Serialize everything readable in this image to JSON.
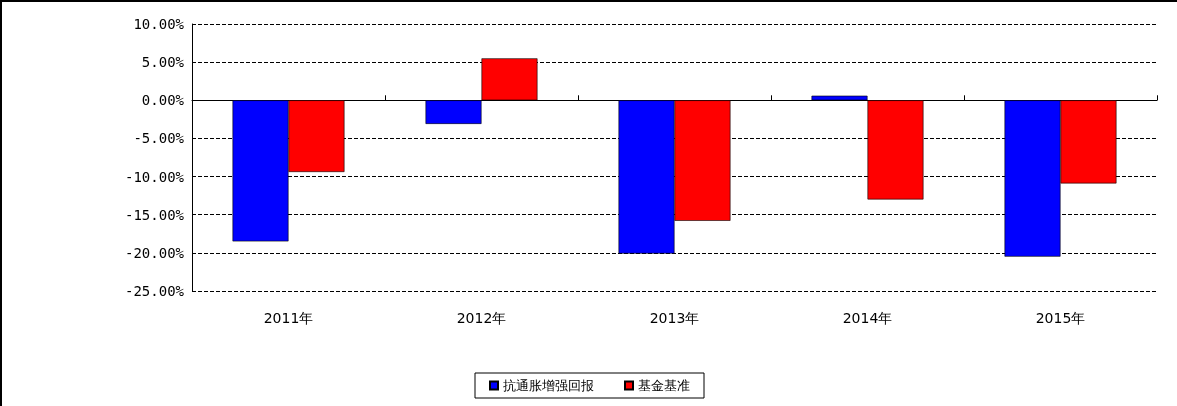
{
  "chart_data": {
    "type": "bar",
    "categories": [
      "2011年",
      "2012年",
      "2013年",
      "2014年",
      "2015年"
    ],
    "series": [
      {
        "name": "抗通胀增强回报",
        "color": "#0000ff",
        "values": [
          -18.5,
          -3.1,
          -20.1,
          0.6,
          -20.5
        ]
      },
      {
        "name": "基金基准",
        "color": "#ff0000",
        "values": [
          -9.4,
          5.5,
          -15.8,
          -13.0,
          -10.9
        ]
      }
    ],
    "ylim": [
      -25,
      10
    ],
    "yticks": [
      {
        "value": -25,
        "label": "-25.00%"
      },
      {
        "value": -20,
        "label": "-20.00%"
      },
      {
        "value": -15,
        "label": "-15.00%"
      },
      {
        "value": -10,
        "label": "-10.00%"
      },
      {
        "value": -5,
        "label": "-5.00%"
      },
      {
        "value": 0,
        "label": "0.00%"
      },
      {
        "value": 5,
        "label": "5.00%"
      },
      {
        "value": 10,
        "label": "10.00%"
      }
    ],
    "grid": "y",
    "legend": "bottom"
  }
}
